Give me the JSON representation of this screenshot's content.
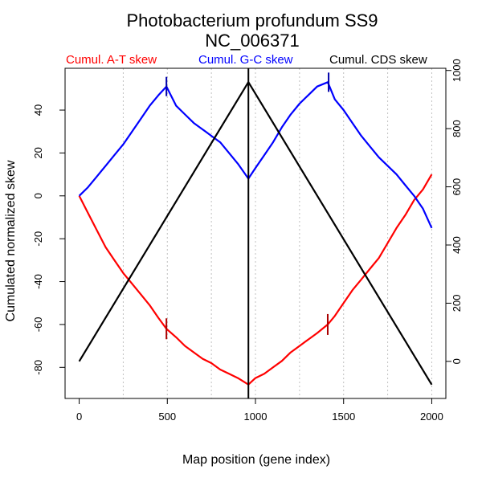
{
  "chart_data": {
    "type": "line",
    "title": "Photobacterium profundum SS9",
    "subtitle": "NC_006371",
    "xlabel": "Map position (gene index)",
    "ylabel_left": "Cumulated normalized skew",
    "ylabel_right": "",
    "xlim": [
      -80,
      2080
    ],
    "ylim_left": [
      -94.5,
      59.5
    ],
    "ylim_right": [
      -127.5,
      1007.5
    ],
    "x_ticks": [
      0,
      500,
      1000,
      1500,
      2000
    ],
    "x_tick_labels": [
      "0",
      "500",
      "1000",
      "1500",
      "2000"
    ],
    "y_left_ticks": [
      -80,
      -60,
      -40,
      -20,
      0,
      20,
      40
    ],
    "y_left_tick_labels": [
      "-80",
      "-60",
      "-40",
      "-20",
      "0",
      "20",
      "40"
    ],
    "y_right_ticks": [
      0,
      200,
      400,
      600,
      800,
      1000
    ],
    "y_right_tick_labels": [
      "0",
      "200",
      "400",
      "600",
      "800",
      "1000"
    ],
    "grid_x": [
      250,
      500,
      750,
      1000,
      1250,
      1500,
      1750,
      2000
    ],
    "markers": {
      "vertical_line_x": 960,
      "at_ticks_x": [
        495,
        1410
      ],
      "gc_ticks_x": [
        495,
        1415
      ]
    },
    "series": [
      {
        "name": "Cumul. A-T skew",
        "color": "#ff0000",
        "axis": "left",
        "x": [
          0,
          50,
          100,
          150,
          200,
          250,
          300,
          350,
          400,
          450,
          495,
          550,
          600,
          650,
          700,
          750,
          800,
          850,
          900,
          960,
          1000,
          1050,
          1100,
          1150,
          1200,
          1250,
          1300,
          1350,
          1410,
          1450,
          1500,
          1550,
          1600,
          1650,
          1700,
          1750,
          1800,
          1850,
          1900,
          1950,
          2000
        ],
        "values": [
          0,
          -8,
          -16,
          -24,
          -30,
          -36,
          -41,
          -46,
          -51,
          -57,
          -62,
          -66,
          -70,
          -73,
          -76,
          -78,
          -81,
          -83,
          -85,
          -88,
          -85,
          -83,
          -80,
          -77,
          -73,
          -70,
          -67,
          -64,
          -60,
          -56,
          -50,
          -44,
          -39,
          -34,
          -29,
          -22,
          -15,
          -9,
          -2,
          3,
          10
        ]
      },
      {
        "name": "Cumul. G-C skew",
        "color": "#0000ff",
        "axis": "left",
        "x": [
          0,
          50,
          100,
          150,
          200,
          250,
          300,
          350,
          400,
          450,
          495,
          550,
          600,
          650,
          700,
          750,
          800,
          850,
          900,
          960,
          1000,
          1050,
          1100,
          1150,
          1200,
          1250,
          1300,
          1350,
          1410,
          1450,
          1500,
          1550,
          1600,
          1650,
          1700,
          1750,
          1800,
          1850,
          1900,
          1950,
          2000
        ],
        "values": [
          0,
          4,
          9,
          14,
          19,
          24,
          30,
          36,
          42,
          47,
          51,
          42,
          38,
          34,
          31,
          28,
          25,
          20,
          15,
          8,
          13,
          19,
          25,
          32,
          38,
          43,
          47,
          51,
          53,
          45,
          40,
          34,
          28,
          23,
          18,
          14,
          10,
          5,
          0,
          -6,
          -15
        ]
      },
      {
        "name": "Cumul. CDS skew",
        "color": "#000000",
        "axis": "right",
        "x": [
          0,
          960,
          2000
        ],
        "values": [
          0,
          960,
          -80
        ]
      }
    ],
    "legend": [
      "Cumul. A-T skew",
      "Cumul. G-C skew",
      "Cumul. CDS skew"
    ]
  }
}
